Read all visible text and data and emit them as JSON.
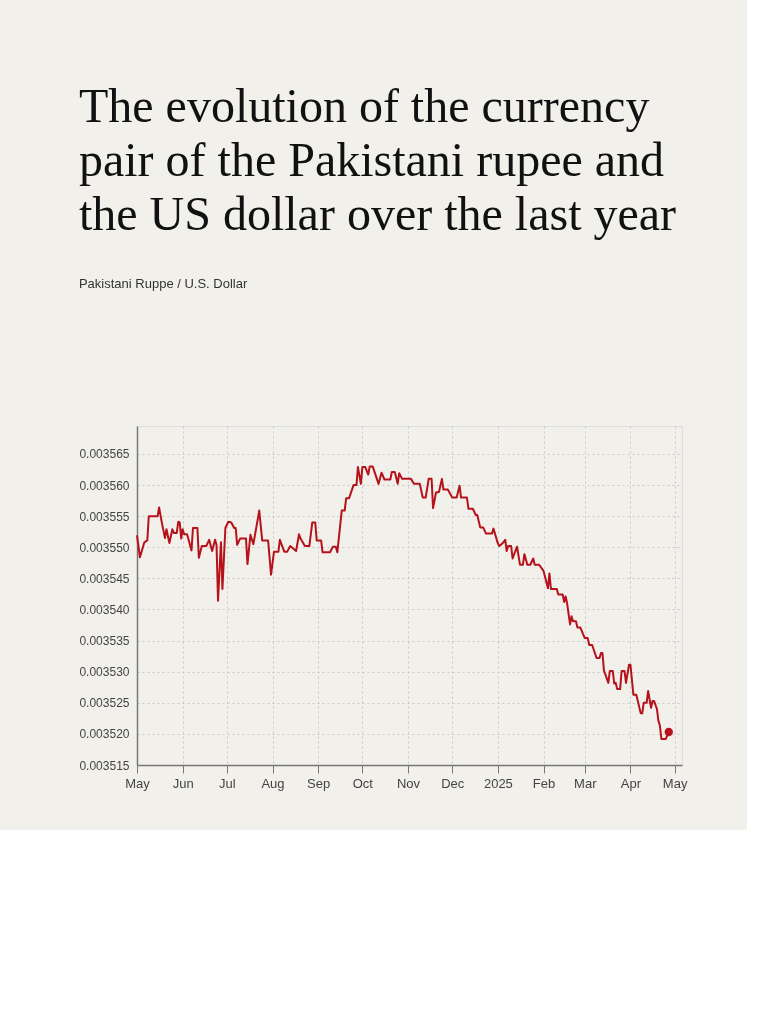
{
  "chart_data": {
    "type": "line",
    "title": "The evolution of the currency pair of the Pakistani rupee and the US dollar over the last year",
    "subtitle": "Pakistani Ruppe / U.S. Dollar",
    "grid": true,
    "line_style": "solid",
    "xlim": [
      "2024-05-01",
      "2025-05-06"
    ],
    "xticks": [
      {
        "value": "2024-05-01",
        "label": "May"
      },
      {
        "value": "2024-06-01",
        "label": "Jun"
      },
      {
        "value": "2024-07-01",
        "label": "Jul"
      },
      {
        "value": "2024-08-01",
        "label": "Aug"
      },
      {
        "value": "2024-09-01",
        "label": "Sep"
      },
      {
        "value": "2024-10-01",
        "label": "Oct"
      },
      {
        "value": "2024-11-01",
        "label": "Nov"
      },
      {
        "value": "2024-12-01",
        "label": "Dec"
      },
      {
        "value": "2025-01-01",
        "label": "2025"
      },
      {
        "value": "2025-02-01",
        "label": "Feb"
      },
      {
        "value": "2025-03-01",
        "label": "Mar"
      },
      {
        "value": "2025-04-01",
        "label": "Apr"
      },
      {
        "value": "2025-05-01",
        "label": "May"
      }
    ],
    "ylim": [
      0.003515,
      0.0035695
    ],
    "yticks": [
      {
        "value": 0.003515,
        "label": "0.003515"
      },
      {
        "value": 0.00352,
        "label": "0.003520"
      },
      {
        "value": 0.003525,
        "label": "0.003525"
      },
      {
        "value": 0.00353,
        "label": "0.003530"
      },
      {
        "value": 0.003535,
        "label": "0.003535"
      },
      {
        "value": 0.00354,
        "label": "0.003540"
      },
      {
        "value": 0.003545,
        "label": "0.003545"
      },
      {
        "value": 0.00355,
        "label": "0.003550"
      },
      {
        "value": 0.003555,
        "label": "0.003555"
      },
      {
        "value": 0.00356,
        "label": "0.003560"
      },
      {
        "value": 0.003565,
        "label": "0.003565"
      }
    ],
    "series": [
      {
        "type": "line",
        "color": "#b5121b",
        "x": [
          "2024-05-01",
          "2024-05-03",
          "2024-05-06",
          "2024-05-08",
          "2024-05-09",
          "2024-05-15",
          "2024-05-16",
          "2024-05-18",
          "2024-05-20",
          "2024-05-21",
          "2024-05-23",
          "2024-05-25",
          "2024-05-26",
          "2024-05-28",
          "2024-05-29",
          "2024-05-30",
          "2024-05-31",
          "2024-06-01",
          "2024-06-02",
          "2024-06-04",
          "2024-06-07",
          "2024-06-08",
          "2024-06-11",
          "2024-06-12",
          "2024-06-14",
          "2024-06-17",
          "2024-06-19",
          "2024-06-21",
          "2024-06-23",
          "2024-06-24",
          "2024-06-25",
          "2024-06-27",
          "2024-06-28",
          "2024-06-30",
          "2024-07-02",
          "2024-07-04",
          "2024-07-06",
          "2024-07-07",
          "2024-07-08",
          "2024-07-10",
          "2024-07-14",
          "2024-07-15",
          "2024-07-17",
          "2024-07-19",
          "2024-07-23",
          "2024-07-25",
          "2024-07-29",
          "2024-07-31",
          "2024-08-02",
          "2024-08-05",
          "2024-08-06",
          "2024-08-09",
          "2024-08-11",
          "2024-08-13",
          "2024-08-17",
          "2024-08-19",
          "2024-08-20",
          "2024-08-23",
          "2024-08-26",
          "2024-08-28",
          "2024-08-30",
          "2024-08-31",
          "2024-09-03",
          "2024-09-04",
          "2024-09-09",
          "2024-09-11",
          "2024-09-13",
          "2024-09-14",
          "2024-09-17",
          "2024-09-19",
          "2024-09-20",
          "2024-09-22",
          "2024-09-25",
          "2024-09-27",
          "2024-09-28",
          "2024-09-30",
          "2024-10-01",
          "2024-10-03",
          "2024-10-05",
          "2024-10-06",
          "2024-10-08",
          "2024-10-12",
          "2024-10-14",
          "2024-10-16",
          "2024-10-20",
          "2024-10-21",
          "2024-10-23",
          "2024-10-25",
          "2024-10-26",
          "2024-10-28",
          "2024-11-03",
          "2024-11-05",
          "2024-11-09",
          "2024-11-11",
          "2024-11-13",
          "2024-11-15",
          "2024-11-17",
          "2024-11-18",
          "2024-11-20",
          "2024-11-22",
          "2024-11-24",
          "2024-11-25",
          "2024-11-28",
          "2024-12-01",
          "2024-12-04",
          "2024-12-06",
          "2024-12-07",
          "2024-12-11",
          "2024-12-12",
          "2024-12-15",
          "2024-12-17",
          "2024-12-18",
          "2024-12-20",
          "2024-12-22",
          "2024-12-24",
          "2024-12-28",
          "2024-12-29",
          "2025-01-01",
          "2025-01-02",
          "2025-01-04",
          "2025-01-06",
          "2025-01-07",
          "2025-01-08",
          "2025-01-10",
          "2025-01-11",
          "2025-01-14",
          "2025-01-16",
          "2025-01-18",
          "2025-01-19",
          "2025-01-21",
          "2025-01-23",
          "2025-01-25",
          "2025-01-26",
          "2025-01-29",
          "2025-02-01",
          "2025-02-04",
          "2025-02-05",
          "2025-02-06",
          "2025-02-10",
          "2025-02-11",
          "2025-02-14",
          "2025-02-15",
          "2025-02-16",
          "2025-02-17",
          "2025-02-19",
          "2025-02-20",
          "2025-02-21",
          "2025-02-23",
          "2025-02-24",
          "2025-02-26",
          "2025-03-01",
          "2025-03-03",
          "2025-03-04",
          "2025-03-06",
          "2025-03-09",
          "2025-03-11",
          "2025-03-12",
          "2025-03-13",
          "2025-03-14",
          "2025-03-17",
          "2025-03-18",
          "2025-03-20",
          "2025-03-21",
          "2025-03-22",
          "2025-03-23",
          "2025-03-25",
          "2025-03-26",
          "2025-03-28",
          "2025-03-29",
          "2025-03-31",
          "2025-04-01",
          "2025-04-03",
          "2025-04-05",
          "2025-04-08",
          "2025-04-09",
          "2025-04-10",
          "2025-04-12",
          "2025-04-13",
          "2025-04-15",
          "2025-04-16",
          "2025-04-17",
          "2025-04-19",
          "2025-04-20",
          "2025-04-21",
          "2025-04-22",
          "2025-04-25",
          "2025-04-27"
        ],
        "values": [
          0.0035519,
          0.0035484,
          0.0035508,
          0.0035511,
          0.003555,
          0.003555,
          0.0035564,
          0.0035538,
          0.0035515,
          0.0035529,
          0.0035507,
          0.0035529,
          0.0035523,
          0.0035523,
          0.0035541,
          0.003554,
          0.0035514,
          0.0035529,
          0.0035521,
          0.0035521,
          0.0035495,
          0.0035531,
          0.0035531,
          0.0035483,
          0.0035502,
          0.0035502,
          0.0035512,
          0.0035494,
          0.0035512,
          0.0035504,
          0.0035414,
          0.0035508,
          0.0035433,
          0.0035531,
          0.0035541,
          0.003554,
          0.0035531,
          0.0035531,
          0.0035504,
          0.0035514,
          0.0035514,
          0.0035473,
          0.003552,
          0.0035505,
          0.0035559,
          0.0035511,
          0.0035511,
          0.0035456,
          0.0035493,
          0.0035493,
          0.0035512,
          0.0035493,
          0.0035493,
          0.0035502,
          0.0035494,
          0.0035521,
          0.0035514,
          0.0035502,
          0.0035502,
          0.003554,
          0.003554,
          0.0035511,
          0.0035511,
          0.0035492,
          0.0035492,
          0.0035501,
          0.0035501,
          0.0035492,
          0.0035559,
          0.0035559,
          0.0035579,
          0.0035579,
          0.00356,
          0.00356,
          0.0035629,
          0.0035602,
          0.0035629,
          0.0035629,
          0.0035617,
          0.003563,
          0.003563,
          0.0035602,
          0.003562,
          0.0035609,
          0.0035609,
          0.0035621,
          0.0035621,
          0.0035602,
          0.0035619,
          0.003561,
          0.003561,
          0.0035602,
          0.0035602,
          0.003558,
          0.003558,
          0.003561,
          0.003561,
          0.0035563,
          0.0035588,
          0.0035589,
          0.003561,
          0.0035593,
          0.0035593,
          0.003558,
          0.003558,
          0.0035599,
          0.003558,
          0.003558,
          0.0035562,
          0.0035562,
          0.0035552,
          0.0035552,
          0.0035532,
          0.0035532,
          0.0035522,
          0.0035522,
          0.003553,
          0.0035506,
          0.0035502,
          0.0035506,
          0.0035512,
          0.0035494,
          0.0035502,
          0.0035502,
          0.0035482,
          0.0035501,
          0.0035472,
          0.0035472,
          0.0035489,
          0.0035472,
          0.0035472,
          0.0035482,
          0.0035472,
          0.0035472,
          0.0035462,
          0.0035434,
          0.0035458,
          0.0035433,
          0.0035433,
          0.0035424,
          0.0035424,
          0.0035412,
          0.0035421,
          0.003541,
          0.0035376,
          0.0035389,
          0.0035381,
          0.0035381,
          0.0035371,
          0.0035371,
          0.0035354,
          0.0035354,
          0.0035343,
          0.0035343,
          0.0035322,
          0.0035322,
          0.003533,
          0.003533,
          0.0035302,
          0.0035282,
          0.0035301,
          0.0035301,
          0.0035281,
          0.0035282,
          0.0035272,
          0.0035272,
          0.0035301,
          0.0035301,
          0.0035282,
          0.0035311,
          0.0035311,
          0.0035263,
          0.0035263,
          0.0035233,
          0.0035233,
          0.003525,
          0.003525,
          0.0035269,
          0.0035242,
          0.0035253,
          0.0035253,
          0.003524,
          0.0035221,
          0.0035213,
          0.0035192,
          0.0035192,
          0.0035203
        ]
      },
      {
        "type": "scatter",
        "color": "#b5121b",
        "marker": "circle",
        "x": [
          "2025-04-27"
        ],
        "values": [
          0.0035203
        ]
      }
    ]
  }
}
